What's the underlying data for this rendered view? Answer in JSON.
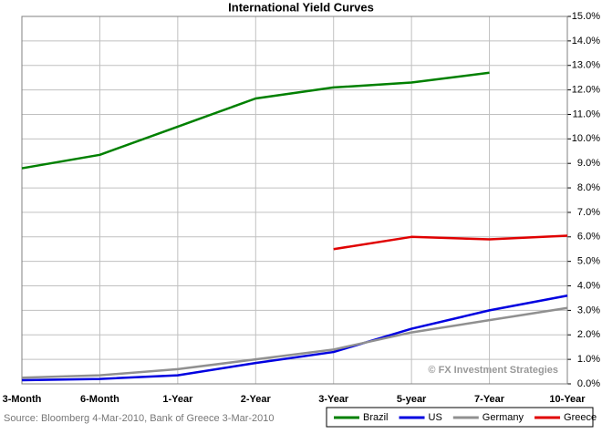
{
  "chart_data": {
    "type": "line",
    "title": "International Yield Curves",
    "categories": [
      "3-Month",
      "6-Month",
      "1-Year",
      "2-Year",
      "3-Year",
      "5-year",
      "7-Year",
      "10-Year"
    ],
    "series": [
      {
        "name": "Brazil",
        "color": "#008000",
        "values": [
          8.8,
          9.35,
          10.5,
          11.65,
          12.1,
          12.3,
          12.7,
          null
        ]
      },
      {
        "name": "US",
        "color": "#0000e0",
        "values": [
          0.15,
          0.2,
          0.35,
          0.85,
          1.3,
          2.25,
          3.0,
          3.6
        ]
      },
      {
        "name": "Germany",
        "color": "#909090",
        "values": [
          0.25,
          0.35,
          0.6,
          1.0,
          1.4,
          2.1,
          2.6,
          3.1
        ]
      },
      {
        "name": "Greece",
        "color": "#e00000",
        "values": [
          null,
          null,
          null,
          null,
          5.5,
          6.0,
          5.9,
          6.05
        ]
      }
    ],
    "ylim": [
      0,
      15
    ],
    "yticks": [
      {
        "value": 0,
        "label": "0.0%"
      },
      {
        "value": 1,
        "label": "1.0%"
      },
      {
        "value": 2,
        "label": "2.0%"
      },
      {
        "value": 3,
        "label": "3.0%"
      },
      {
        "value": 4,
        "label": "4.0%"
      },
      {
        "value": 5,
        "label": "5.0%"
      },
      {
        "value": 6,
        "label": "6.0%"
      },
      {
        "value": 7,
        "label": "7.0%"
      },
      {
        "value": 8,
        "label": "8.0%"
      },
      {
        "value": 9,
        "label": "9.0%"
      },
      {
        "value": 10,
        "label": "10.0%"
      },
      {
        "value": 11,
        "label": "11.0%"
      },
      {
        "value": 12,
        "label": "12.0%"
      },
      {
        "value": 13,
        "label": "13.0%"
      },
      {
        "value": 14,
        "label": "14.0%"
      },
      {
        "value": 15,
        "label": "15.0%"
      }
    ],
    "grid": true,
    "legend": "bottom-right",
    "annotation": "© FX Investment Strategies",
    "source": "Source: Bloomberg 4-Mar-2010, Bank of Greece 3-Mar-2010"
  }
}
